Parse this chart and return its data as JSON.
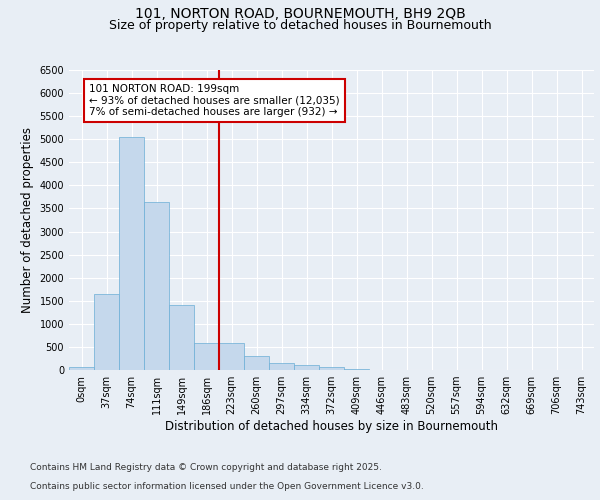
{
  "title_line1": "101, NORTON ROAD, BOURNEMOUTH, BH9 2QB",
  "title_line2": "Size of property relative to detached houses in Bournemouth",
  "xlabel": "Distribution of detached houses by size in Bournemouth",
  "ylabel": "Number of detached properties",
  "bar_color": "#c5d8ec",
  "bar_edge_color": "#6aaed6",
  "vline_color": "#cc0000",
  "vline_x": 5.5,
  "annotation_text": "101 NORTON ROAD: 199sqm\n← 93% of detached houses are smaller (12,035)\n7% of semi-detached houses are larger (932) →",
  "annotation_box_color": "#cc0000",
  "footer_line1": "Contains HM Land Registry data © Crown copyright and database right 2025.",
  "footer_line2": "Contains public sector information licensed under the Open Government Licence v3.0.",
  "categories": [
    "0sqm",
    "37sqm",
    "74sqm",
    "111sqm",
    "149sqm",
    "186sqm",
    "223sqm",
    "260sqm",
    "297sqm",
    "334sqm",
    "372sqm",
    "409sqm",
    "446sqm",
    "483sqm",
    "520sqm",
    "557sqm",
    "594sqm",
    "632sqm",
    "669sqm",
    "706sqm",
    "743sqm"
  ],
  "values": [
    70,
    1650,
    5050,
    3650,
    1400,
    580,
    590,
    310,
    160,
    110,
    70,
    30,
    5,
    3,
    2,
    1,
    1,
    0,
    0,
    0,
    0
  ],
  "ylim": [
    0,
    6500
  ],
  "yticks": [
    0,
    500,
    1000,
    1500,
    2000,
    2500,
    3000,
    3500,
    4000,
    4500,
    5000,
    5500,
    6000,
    6500
  ],
  "background_color": "#e8eef5",
  "plot_bg_color": "#e8eef5",
  "grid_color": "#ffffff",
  "title_fontsize": 10,
  "subtitle_fontsize": 9,
  "axis_label_fontsize": 8.5,
  "tick_fontsize": 7,
  "footer_fontsize": 6.5,
  "annotation_fontsize": 7.5
}
